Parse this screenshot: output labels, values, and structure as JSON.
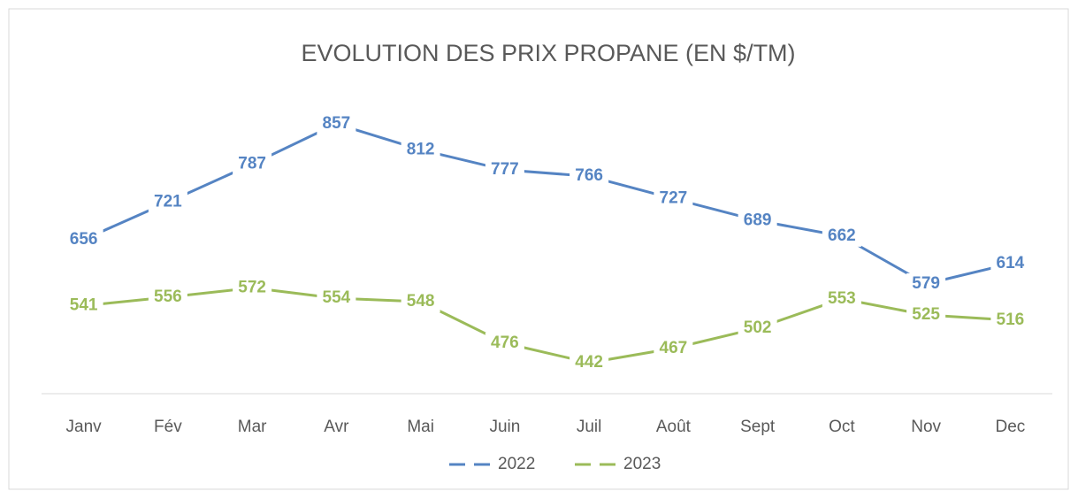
{
  "chart_data": {
    "type": "line",
    "title": "EVOLUTION DES PRIX PROPANE (EN $/TM)",
    "categories": [
      "Janv",
      "Fév",
      "Mar",
      "Avr",
      "Mai",
      "Juin",
      "Juil",
      "Août",
      "Sept",
      "Oct",
      "Nov",
      "Dec"
    ],
    "series": [
      {
        "name": "2022",
        "color": "#5584c3",
        "values": [
          656,
          721,
          787,
          857,
          812,
          777,
          766,
          727,
          689,
          662,
          579,
          614
        ]
      },
      {
        "name": "2023",
        "color": "#9bbb59",
        "values": [
          541,
          556,
          572,
          554,
          548,
          476,
          442,
          467,
          502,
          553,
          525,
          516
        ]
      }
    ],
    "legend": "bottom"
  }
}
